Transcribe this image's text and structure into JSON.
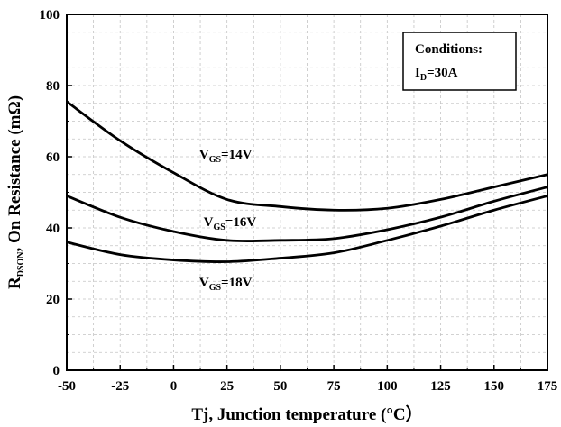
{
  "chart_data": {
    "type": "line",
    "title": "",
    "xlabel": "Tj, Junction temperature (°C）",
    "ylabel": {
      "main": "R",
      "sub": "DSON",
      "rest": ", On Resistance (mΩ)"
    },
    "x": [
      -50,
      -25,
      0,
      25,
      50,
      75,
      100,
      125,
      150,
      175
    ],
    "xlim": [
      -50,
      175
    ],
    "ylim": [
      0,
      100
    ],
    "xticks": [
      "-50",
      "-25",
      "0",
      "25",
      "50",
      "75",
      "100",
      "125",
      "150",
      "175"
    ],
    "yticks": [
      "0",
      "20",
      "40",
      "60",
      "80",
      "100"
    ],
    "grid": true,
    "series": [
      {
        "label_main": "V",
        "label_sub": "GS",
        "label_rest": "=14V",
        "values": [
          75.5,
          64.5,
          55.5,
          48.0,
          46.0,
          45.0,
          45.5,
          48.0,
          51.5,
          55.0
        ]
      },
      {
        "label_main": "V",
        "label_sub": "GS",
        "label_rest": "=16V",
        "values": [
          49.0,
          43.0,
          39.0,
          36.5,
          36.5,
          37.0,
          39.5,
          43.0,
          47.5,
          51.5
        ]
      },
      {
        "label_main": "V",
        "label_sub": "GS",
        "label_rest": "=18V",
        "values": [
          36.0,
          32.5,
          31.0,
          30.5,
          31.5,
          33.0,
          36.5,
          40.5,
          45.0,
          49.0
        ]
      }
    ],
    "annotation": {
      "title": "Conditions:",
      "cond_main": "I",
      "cond_sub": "D",
      "cond_rest": "=30A"
    }
  }
}
